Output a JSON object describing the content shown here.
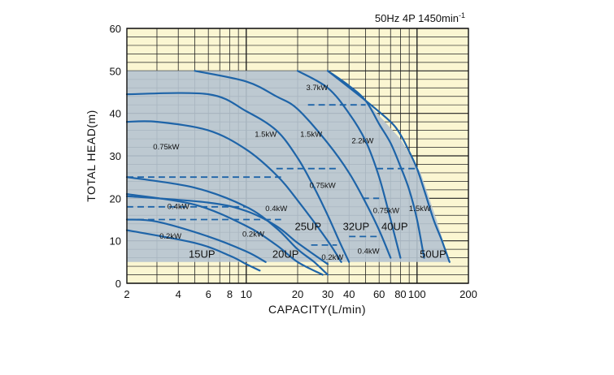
{
  "chart_data": {
    "type": "line",
    "title": "",
    "condition": "50Hz 4P 1450min",
    "condition_sup": "-1",
    "xlabel": "CAPACITY(L/min)",
    "ylabel": "TOTAL HEAD(m)",
    "x_scale": "log",
    "xlim": [
      2,
      200
    ],
    "ylim": [
      0,
      60
    ],
    "x_ticks": [
      2,
      4,
      6,
      8,
      10,
      20,
      30,
      40,
      60,
      80,
      100,
      200
    ],
    "y_ticks": [
      0,
      10,
      20,
      30,
      40,
      50,
      60
    ],
    "grid": true,
    "colors": {
      "plot_background": "#fbf6d2",
      "envelope_fill": "#b6c4d0",
      "curve": "#1e64a8",
      "grid": "#222222",
      "text": "#111111"
    },
    "envelope": [
      [
        2,
        5
      ],
      [
        2,
        50
      ],
      [
        30,
        50
      ],
      [
        50,
        43
      ],
      [
        80,
        34
      ],
      [
        105,
        26
      ],
      [
        130,
        15
      ],
      [
        155,
        5
      ]
    ],
    "series": [
      {
        "name": "15UP 0.2kW",
        "style": "solid",
        "x": [
          2,
          5,
          8,
          10,
          12
        ],
        "y": [
          12.5,
          9.5,
          6.5,
          4.5,
          3
        ]
      },
      {
        "name": "15UP 0.4kW",
        "style": "solid",
        "x": [
          2,
          5,
          10,
          15,
          20,
          28
        ],
        "y": [
          21,
          18.5,
          13.5,
          9,
          5,
          2
        ]
      },
      {
        "name": "15UP 0.75kW",
        "style": "solid",
        "x": [
          2,
          5,
          10,
          15,
          20,
          25,
          30
        ],
        "y": [
          25,
          22.5,
          18,
          13,
          8,
          5,
          2
        ]
      },
      {
        "name": "20UP 0.2kW",
        "style": "solid",
        "x": [
          2,
          3,
          6,
          10,
          13
        ],
        "y": [
          15,
          14.5,
          11,
          7.5,
          5
        ]
      },
      {
        "name": "20UP 0.4kW",
        "style": "solid",
        "x": [
          2,
          6,
          10,
          15,
          20,
          30
        ],
        "y": [
          20.5,
          19,
          17,
          13.5,
          9.5,
          4.5
        ]
      },
      {
        "name": "20UP 0.75kW",
        "style": "solid",
        "x": [
          2,
          3,
          6,
          10,
          15,
          20,
          30,
          36
        ],
        "y": [
          38,
          38,
          36,
          31.5,
          25.5,
          19.5,
          10,
          5
        ]
      },
      {
        "name": "25UP 1.5kW",
        "style": "solid",
        "x": [
          2,
          6,
          10,
          15,
          20,
          25,
          30,
          35,
          40
        ],
        "y": [
          44.5,
          44.5,
          40.5,
          36,
          29.5,
          22.5,
          16,
          10,
          5
        ]
      },
      {
        "name": "32UP 1.5kW",
        "style": "solid",
        "x": [
          5,
          10,
          15,
          20,
          30,
          40,
          50,
          60,
          70
        ],
        "y": [
          50,
          47.5,
          44,
          41,
          33,
          26,
          19,
          12.5,
          6
        ]
      },
      {
        "name": "40UP 2.2kW",
        "style": "solid",
        "x": [
          20,
          30,
          40,
          50,
          60,
          70,
          80
        ],
        "y": [
          50,
          46,
          40,
          33.5,
          25,
          15,
          6
        ]
      },
      {
        "name": "40UP 3.7kW",
        "style": "solid",
        "x": [
          30,
          40,
          50,
          60,
          70,
          80,
          90,
          100,
          110
        ],
        "y": [
          50,
          46.5,
          43,
          37.5,
          33,
          27.5,
          22,
          15,
          6
        ]
      },
      {
        "name": "50UP 1.5kW",
        "style": "solid",
        "x": [
          30,
          50,
          70,
          80,
          90,
          100,
          110,
          125,
          140,
          155
        ],
        "y": [
          50,
          43,
          38,
          35,
          31,
          27,
          22,
          15,
          10,
          5
        ]
      },
      {
        "name": "dash 15",
        "style": "dashed",
        "x": [
          2,
          16
        ],
        "y": [
          15,
          15
        ]
      },
      {
        "name": "dash 25",
        "style": "dashed",
        "x": [
          2,
          16
        ],
        "y": [
          25,
          25
        ]
      },
      {
        "name": "dash 25b",
        "style": "dashed",
        "x": [
          15,
          35
        ],
        "y": [
          27,
          27
        ]
      },
      {
        "name": "dash 42",
        "style": "dashed",
        "x": [
          23,
          50
        ],
        "y": [
          42,
          42
        ]
      },
      {
        "name": "dash 27",
        "style": "dashed",
        "x": [
          58,
          100
        ],
        "y": [
          27,
          27
        ]
      },
      {
        "name": "dash 20",
        "style": "dashed",
        "x": [
          48,
          60
        ],
        "y": [
          20,
          20
        ]
      },
      {
        "name": "dash 9",
        "style": "dashed",
        "x": [
          24,
          34
        ],
        "y": [
          9,
          9
        ]
      },
      {
        "name": "dash 11",
        "style": "dashed",
        "x": [
          40,
          60
        ],
        "y": [
          11,
          11
        ]
      },
      {
        "name": "dash 18",
        "style": "dashed",
        "x": [
          2,
          10
        ],
        "y": [
          18,
          18
        ]
      }
    ],
    "power_labels": [
      {
        "text": "3.7kW",
        "x": 26,
        "y": 45.5
      },
      {
        "text": "1.5kW",
        "x": 13,
        "y": 34.5
      },
      {
        "text": "1.5kW",
        "x": 24,
        "y": 34.5
      },
      {
        "text": "2.2kW",
        "x": 48,
        "y": 33
      },
      {
        "text": "0.75kW",
        "x": 3.4,
        "y": 31.5
      },
      {
        "text": "0.75kW",
        "x": 28,
        "y": 22.5
      },
      {
        "text": "0.4kW",
        "x": 4,
        "y": 17.5
      },
      {
        "text": "0.4kW",
        "x": 15,
        "y": 17
      },
      {
        "text": "0.75kW",
        "x": 66,
        "y": 16.5
      },
      {
        "text": "1.5kW",
        "x": 104,
        "y": 17
      },
      {
        "text": "0.2kW",
        "x": 3.6,
        "y": 10.5
      },
      {
        "text": "0.2kW",
        "x": 11,
        "y": 11
      },
      {
        "text": "0.2kW",
        "x": 32,
        "y": 5.5
      },
      {
        "text": "0.4kW",
        "x": 52,
        "y": 7
      }
    ],
    "model_labels": [
      {
        "text": "15UP",
        "x": 5.5,
        "y": 6
      },
      {
        "text": "20UP",
        "x": 17,
        "y": 6
      },
      {
        "text": "25UP",
        "x": 23,
        "y": 12.5
      },
      {
        "text": "32UP",
        "x": 44,
        "y": 12.5
      },
      {
        "text": "40UP",
        "x": 74,
        "y": 12.5
      },
      {
        "text": "50UP",
        "x": 124,
        "y": 6
      }
    ]
  }
}
